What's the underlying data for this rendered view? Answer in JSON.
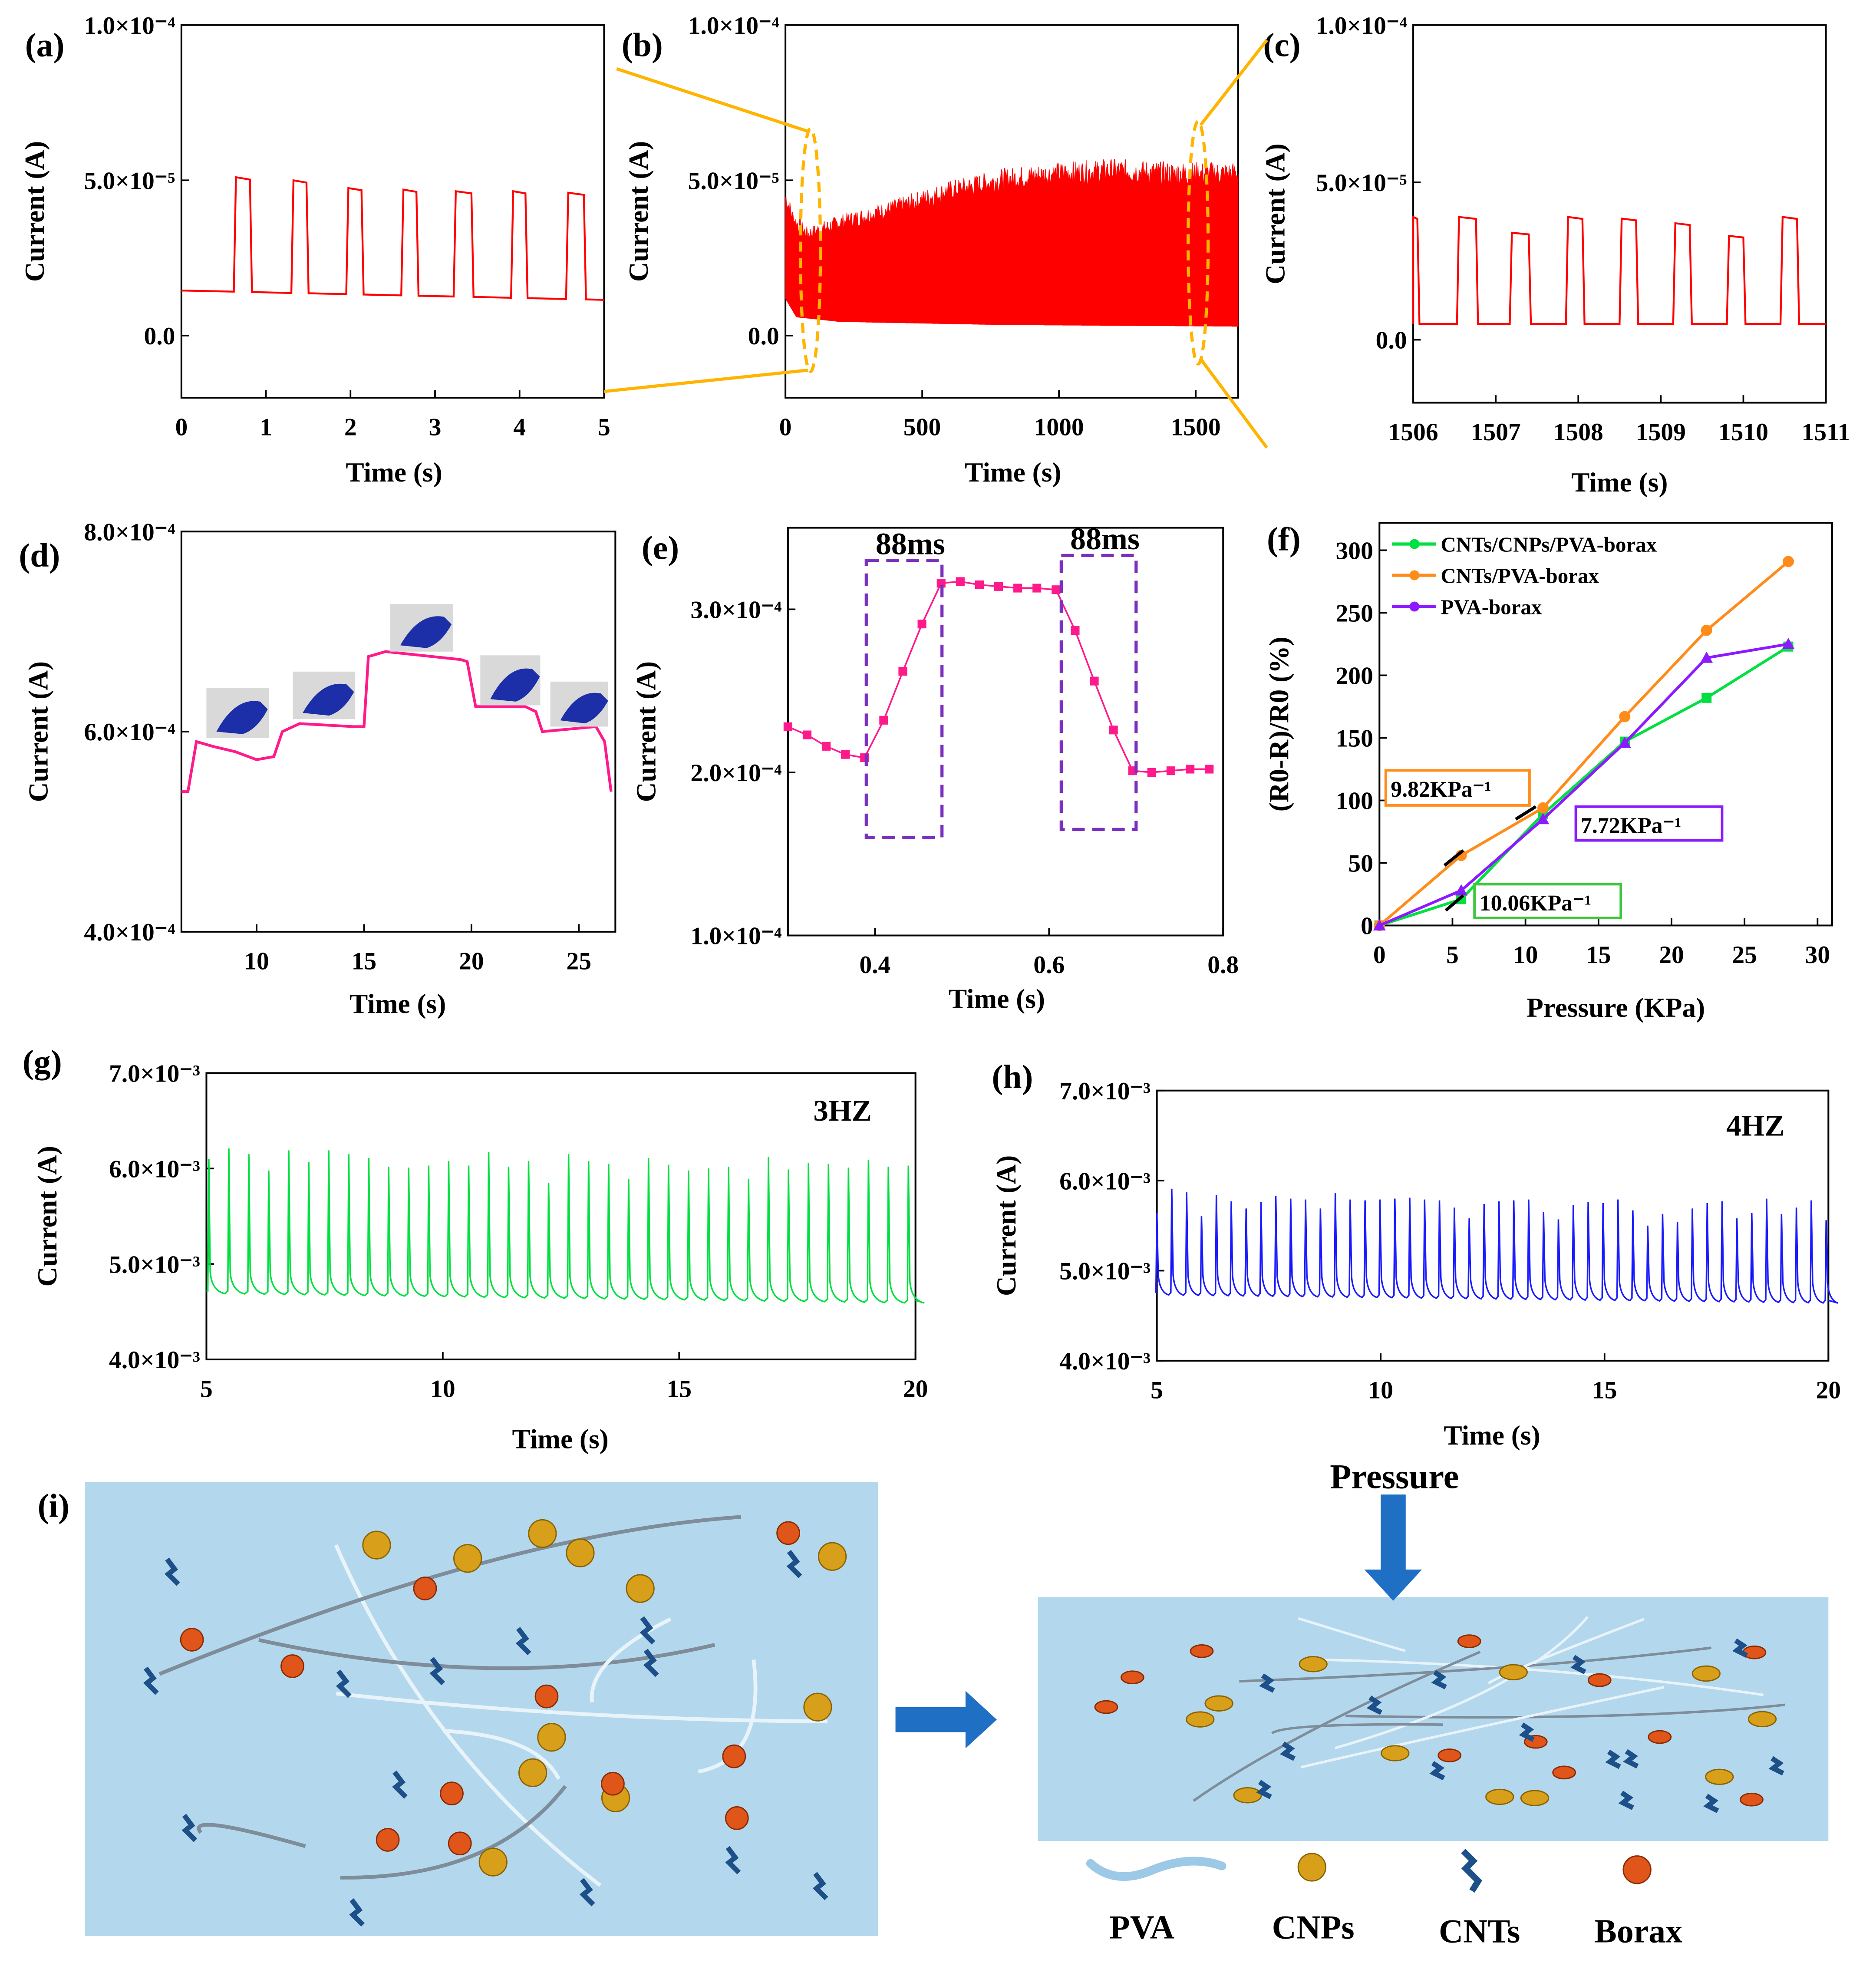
{
  "panel_labels": {
    "a": "(a)",
    "b": "(b)",
    "c": "(c)",
    "d": "(d)",
    "e": "(e)",
    "f": "(f)",
    "g": "(g)",
    "h": "(h)",
    "i": "(i)"
  },
  "colors": {
    "red": "#ff0000",
    "pink": "#ff1a8c",
    "green": "#00e040",
    "blue": "#1a1aff",
    "orange": "#ff8c1a",
    "purple": "#8c1aff",
    "box_purple": "#7b2fbf",
    "yellow": "#ffb400",
    "gel": "#b3d8ee",
    "arrow": "#1f6fc4"
  },
  "chart_data": [
    {
      "id": "a",
      "type": "line",
      "xlabel": "Time (s)",
      "ylabel": "Current (A)",
      "xlim": [
        0,
        5
      ],
      "ylim": [
        -2e-05,
        0.0001
      ],
      "xticks": [
        0,
        1,
        2,
        3,
        4,
        5
      ],
      "yticks": [
        0,
        5e-05,
        0.0001
      ],
      "yticklabels": [
        "0.0",
        "5.0×10⁻⁵",
        "1.0×10⁻⁴"
      ],
      "baseline": [
        1.45e-05,
        1.15e-05
      ],
      "pulses": [
        [
          0.62,
          0.81,
          5.1e-05
        ],
        [
          1.3,
          1.48,
          5e-05
        ],
        [
          1.95,
          2.13,
          4.75e-05
        ],
        [
          2.6,
          2.78,
          4.7e-05
        ],
        [
          3.22,
          3.43,
          4.65e-05
        ],
        [
          3.9,
          4.07,
          4.65e-05
        ],
        [
          4.55,
          4.76,
          4.6e-05
        ]
      ]
    },
    {
      "id": "b",
      "type": "area",
      "xlabel": "Time (s)",
      "ylabel": "Current (A)",
      "xlim": [
        0,
        1655
      ],
      "ylim": [
        -2e-05,
        0.0001
      ],
      "xticks": [
        0,
        500,
        1000,
        1500
      ],
      "yticks": [
        0,
        5e-05,
        0.0001
      ],
      "yticklabels": [
        "0.0",
        "5.0×10⁻⁵",
        "1.0×10⁻⁴"
      ],
      "upper_envelope": [
        [
          0,
          4.8e-05
        ],
        [
          30,
          4e-05
        ],
        [
          80,
          3.5e-05
        ],
        [
          200,
          3.9e-05
        ],
        [
          400,
          4.4e-05
        ],
        [
          600,
          5e-05
        ],
        [
          800,
          5.4e-05
        ],
        [
          1000,
          5.6e-05
        ],
        [
          1200,
          5.7e-05
        ],
        [
          1400,
          5.6e-05
        ],
        [
          1655,
          5.6e-05
        ]
      ],
      "lower_envelope": [
        [
          0,
          1.2e-05
        ],
        [
          40,
          6e-06
        ],
        [
          200,
          4.5e-06
        ],
        [
          800,
          3.5e-06
        ],
        [
          1655,
          3e-06
        ]
      ],
      "zoom_windows": [
        [
          0,
          90
        ],
        [
          1506,
          1511
        ]
      ]
    },
    {
      "id": "c",
      "type": "line",
      "xlabel": "Time (s)",
      "ylabel": "Current (A)",
      "xlim": [
        1506,
        1511
      ],
      "ylim": [
        -2e-05,
        0.0001
      ],
      "xticks": [
        1506,
        1507,
        1508,
        1509,
        1510,
        1511
      ],
      "yticks": [
        0,
        5e-05,
        0.0001
      ],
      "yticklabels": [
        "0.0",
        "5.0×10⁻⁵",
        "1.0×10⁻⁴"
      ],
      "baseline": [
        5e-06,
        5e-06
      ],
      "pulses": [
        [
          1505.9,
          1506.05,
          3.9e-05
        ],
        [
          1506.53,
          1506.76,
          3.9e-05
        ],
        [
          1507.17,
          1507.4,
          3.4e-05
        ],
        [
          1507.85,
          1508.05,
          3.9e-05
        ],
        [
          1508.5,
          1508.7,
          3.85e-05
        ],
        [
          1509.15,
          1509.35,
          3.7e-05
        ],
        [
          1509.8,
          1510.0,
          3.3e-05
        ],
        [
          1510.45,
          1510.65,
          3.9e-05
        ]
      ]
    },
    {
      "id": "d",
      "type": "line",
      "xlabel": "Time (s)",
      "ylabel": "Current (A)",
      "xlim": [
        6.5,
        26.7
      ],
      "ylim": [
        0.0004,
        0.0008
      ],
      "xticks": [
        10,
        15,
        20,
        25
      ],
      "yticks": [
        0.0004,
        0.0006,
        0.0008
      ],
      "yticklabels": [
        "4.0×10⁻⁴",
        "6.0×10⁻⁴",
        "8.0×10⁻⁴"
      ],
      "points": [
        [
          6.5,
          0.00054
        ],
        [
          6.8,
          0.00054
        ],
        [
          7.2,
          0.00059
        ],
        [
          8,
          0.000585
        ],
        [
          9,
          0.00058
        ],
        [
          10,
          0.000572
        ],
        [
          10.8,
          0.000575
        ],
        [
          11.2,
          0.0006
        ],
        [
          12,
          0.000608
        ],
        [
          14.5,
          0.000605
        ],
        [
          15,
          0.000605
        ],
        [
          15.2,
          0.000675
        ],
        [
          16,
          0.00068
        ],
        [
          19.5,
          0.000672
        ],
        [
          19.8,
          0.00067
        ],
        [
          20.2,
          0.000625
        ],
        [
          22.5,
          0.000625
        ],
        [
          23,
          0.00062
        ],
        [
          23.3,
          0.0006
        ],
        [
          25.8,
          0.000605
        ],
        [
          26.2,
          0.00059
        ],
        [
          26.5,
          0.00054
        ]
      ]
    },
    {
      "id": "e",
      "type": "line",
      "xlabel": "Time (s)",
      "ylabel": "Current (A)",
      "xlim": [
        0.3,
        0.8
      ],
      "ylim": [
        0.0001,
        0.00035
      ],
      "xticks": [
        0.4,
        0.6,
        0.8
      ],
      "yticks": [
        0.0001,
        0.0002,
        0.0003
      ],
      "yticklabels": [
        "1.0×10⁻⁴",
        "2.0×10⁻⁴",
        "3.0×10⁻⁴"
      ],
      "x": [
        0.3,
        0.322,
        0.344,
        0.366,
        0.388,
        0.41,
        0.432,
        0.454,
        0.476,
        0.498,
        0.52,
        0.542,
        0.564,
        0.586,
        0.608,
        0.63,
        0.652,
        0.674,
        0.696,
        0.718,
        0.74,
        0.762,
        0.784
      ],
      "y": [
        0.000228,
        0.000223,
        0.000216,
        0.000211,
        0.000209,
        0.000232,
        0.000262,
        0.000291,
        0.000316,
        0.000317,
        0.000315,
        0.000314,
        0.000313,
        0.000313,
        0.000312,
        0.000287,
        0.000256,
        0.000226,
        0.000201,
        0.0002,
        0.000201,
        0.000202,
        0.000202
      ],
      "annotations": [
        {
          "text": "88ms",
          "x0": 0.39,
          "x1": 0.477,
          "y0": 0.00016,
          "y1": 0.00033
        },
        {
          "text": "88ms",
          "x0": 0.614,
          "x1": 0.7,
          "y0": 0.000165,
          "y1": 0.000333
        }
      ]
    },
    {
      "id": "f",
      "type": "line",
      "xlabel": "Pressure (KPa)",
      "ylabel": "(R0-R)/R0 (%)",
      "xlim": [
        0,
        31
      ],
      "ylim": [
        0,
        322
      ],
      "xticks": [
        0,
        5,
        10,
        15,
        20,
        25,
        30
      ],
      "yticks": [
        0,
        50,
        100,
        150,
        200,
        250,
        300
      ],
      "legend_position": "top-left",
      "series": [
        {
          "name": "CNTs/CNPs/PVA-borax",
          "color": "#00e040",
          "marker": "square",
          "x": [
            0,
            5.6,
            11.2,
            16.8,
            22.4,
            28
          ],
          "y": [
            0,
            21,
            89,
            147,
            182,
            223
          ]
        },
        {
          "name": "CNTs/PVA-borax",
          "color": "#ff8c1a",
          "marker": "circle",
          "x": [
            0,
            5.6,
            11.2,
            16.8,
            22.4,
            28
          ],
          "y": [
            0,
            56,
            94,
            167,
            236,
            291
          ]
        },
        {
          "name": "PVA-borax",
          "color": "#8c1aff",
          "marker": "triangle",
          "x": [
            0,
            5.6,
            11.2,
            16.8,
            22.4,
            28
          ],
          "y": [
            0,
            28,
            85,
            146,
            214,
            225
          ]
        }
      ],
      "annotations": [
        {
          "text": "9.82KPa⁻¹",
          "color": "#ff8c1a"
        },
        {
          "text": "7.72KPa⁻¹",
          "color": "#8c1aff"
        },
        {
          "text": "10.06KPa⁻¹",
          "color": "#3cc83c"
        }
      ]
    },
    {
      "id": "g",
      "type": "line",
      "xlabel": "Time (s)",
      "ylabel": "Current (A)",
      "xlim": [
        5,
        20
      ],
      "ylim": [
        0.004,
        0.007
      ],
      "xticks": [
        5,
        10,
        15,
        20
      ],
      "yticks": [
        0.004,
        0.005,
        0.006,
        0.007
      ],
      "yticklabels": [
        "4.0×10⁻³",
        "5.0×10⁻³",
        "6.0×10⁻³",
        "7.0×10⁻³"
      ],
      "annotation": "3HZ",
      "peak_x_range": [
        5.05,
        19.85
      ],
      "baseline": [
        0.00472,
        0.00462
      ],
      "peaks": [
        6.1,
        6.21,
        6.15,
        5.98,
        6.19,
        6.07,
        6.19,
        6.15,
        6.11,
        6.02,
        6.01,
        6.03,
        6.08,
        6.03,
        6.17,
        6.02,
        6.08,
        5.85,
        6.15,
        6.08,
        6.05,
        5.89,
        6.11,
        6.04,
        5.98,
        6.0,
        6.02,
        5.89,
        6.12,
        5.99,
        6.06,
        6.05,
        6.01,
        6.09,
        6.02,
        6.03
      ]
    },
    {
      "id": "h",
      "type": "line",
      "xlabel": "Time (s)",
      "ylabel": "Current (A)",
      "xlim": [
        5,
        20
      ],
      "ylim": [
        0.004,
        0.007
      ],
      "xticks": [
        5,
        10,
        15,
        20
      ],
      "yticks": [
        0.004,
        0.005,
        0.006,
        0.007
      ],
      "yticklabels": [
        "4.0×10⁻³",
        "5.0×10⁻³",
        "6.0×10⁻³",
        "7.0×10⁻³"
      ],
      "annotation": "4HZ",
      "peak_x_range": [
        5.0,
        19.95
      ],
      "baseline": [
        0.00476,
        0.00467
      ],
      "peaks": [
        5.64,
        5.91,
        5.87,
        5.61,
        5.84,
        5.77,
        5.69,
        5.76,
        5.83,
        5.8,
        5.79,
        5.69,
        5.86,
        5.79,
        5.78,
        5.79,
        5.8,
        5.81,
        5.79,
        5.78,
        5.7,
        5.58,
        5.74,
        5.77,
        5.78,
        5.79,
        5.65,
        5.57,
        5.73,
        5.76,
        5.75,
        5.79,
        5.67,
        5.5,
        5.63,
        5.54,
        5.69,
        5.75,
        5.77,
        5.58,
        5.64,
        5.8,
        5.63,
        5.7,
        5.78,
        5.56
      ]
    }
  ],
  "schematic": {
    "pressure_label": "Pressure",
    "legend": [
      "PVA",
      "CNPs",
      "CNTs",
      "Borax"
    ]
  }
}
